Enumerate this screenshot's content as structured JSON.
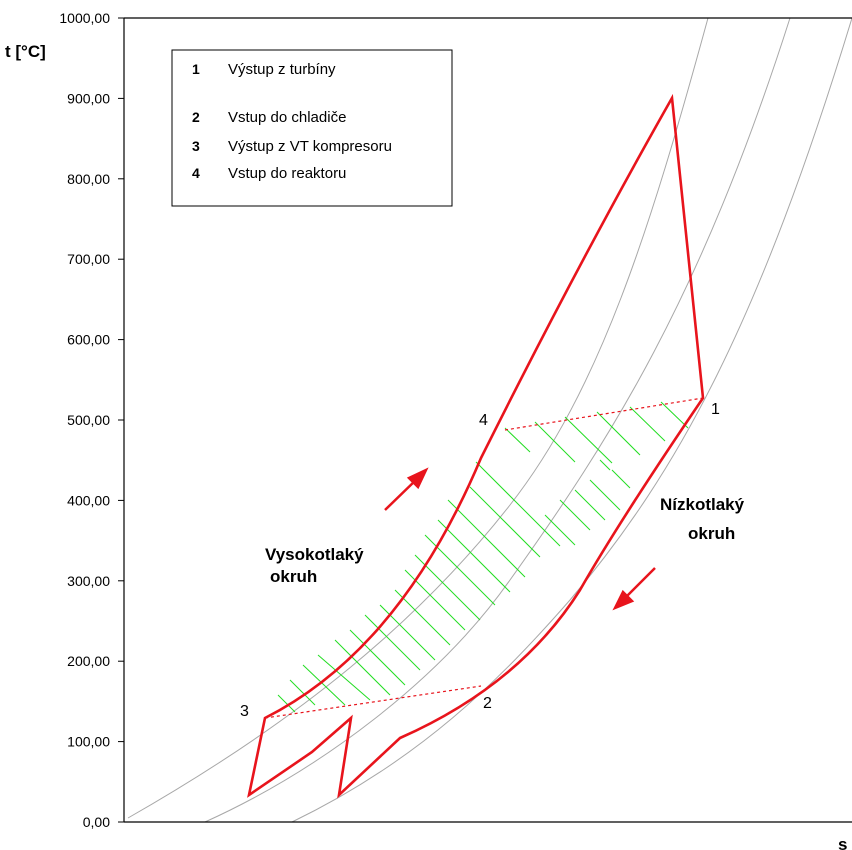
{
  "chart_data": {
    "type": "line",
    "ylabel": "t [°C]",
    "xlabel": "s",
    "ylim": [
      0,
      1000
    ],
    "yticks": [
      "0,00",
      "100,00",
      "200,00",
      "300,00",
      "400,00",
      "500,00",
      "600,00",
      "700,00",
      "800,00",
      "900,00",
      "1000,00"
    ],
    "legend_placement": "top-left",
    "legend": [
      {
        "num": "1",
        "text": "Výstup z turbíny"
      },
      {
        "num": "2",
        "text": "Vstup do chladiče"
      },
      {
        "num": "3",
        "text": "Výstup z VT kompresoru"
      },
      {
        "num": "4",
        "text": "Vstup do reaktoru"
      }
    ],
    "point_labels": [
      "1",
      "2",
      "3",
      "4"
    ],
    "region_labels": {
      "high_pressure": [
        "Vysokotlaký",
        "okruh"
      ],
      "low_pressure": [
        "Nízkotlaký",
        "okruh"
      ]
    },
    "colors": {
      "cycle": "#e8141c",
      "isobar": "#a8a8a8",
      "hatch": "#22dd22",
      "regen": "#e8141c"
    },
    "cycle_temperatures": {
      "turbine_inlet": 900,
      "point_1": 525,
      "point_2": 170,
      "point_3": 130,
      "point_4": 485,
      "compressor_inlet": 35
    },
    "grid": false
  }
}
